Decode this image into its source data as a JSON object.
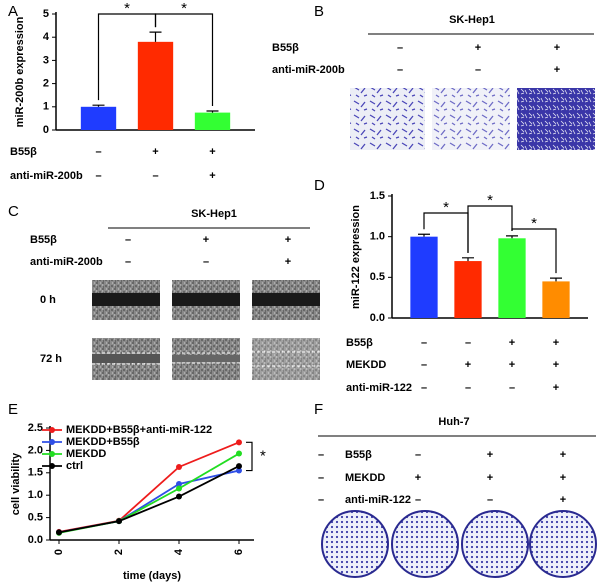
{
  "panel_labels": [
    "A",
    "B",
    "C",
    "D",
    "E",
    "F"
  ],
  "chart_data": [
    {
      "type": "bar",
      "y_label": "miR-200b expression",
      "values": [
        1.0,
        3.8,
        0.75
      ],
      "errors": [
        0.07,
        0.42,
        0.07
      ],
      "colors": [
        "#1f3cff",
        "#ff2a00",
        "#33ff33"
      ],
      "ylim": [
        0,
        5
      ],
      "yticks": [
        0,
        1,
        2,
        3,
        4,
        5
      ],
      "annotations": [
        "*",
        "*"
      ],
      "conditions": [
        {
          "label": "B55β",
          "marks": [
            "–",
            "+",
            "+"
          ]
        },
        {
          "label": "anti-miR-200b",
          "marks": [
            "–",
            "–",
            "+"
          ]
        }
      ]
    },
    {
      "type": "bar",
      "y_label": "miR-122 expression",
      "values": [
        1.0,
        0.7,
        0.98,
        0.45
      ],
      "errors": [
        0.03,
        0.04,
        0.03,
        0.04
      ],
      "colors": [
        "#1f3cff",
        "#ff2a00",
        "#33ff33",
        "#ff8c00"
      ],
      "ylim": [
        0,
        1.5
      ],
      "yticks": [
        {
          "value": 0,
          "label": "0.0"
        },
        {
          "value": 0.5,
          "label": "0.5"
        },
        {
          "value": 1,
          "label": "1.0"
        },
        {
          "value": 1.5,
          "label": "1.5"
        }
      ],
      "annotations": [
        "*",
        "*",
        "*"
      ],
      "conditions": [
        {
          "label": "B55β",
          "marks": [
            "–",
            "–",
            "+",
            "+"
          ]
        },
        {
          "label": "MEKDD",
          "marks": [
            "–",
            "+",
            "+",
            "+"
          ]
        },
        {
          "label": "anti-miR-122",
          "marks": [
            "–",
            "–",
            "–",
            "+"
          ]
        }
      ]
    },
    {
      "type": "line",
      "x_label": "time (days)",
      "y_label": "cell viability",
      "x": [
        0,
        2,
        4,
        6
      ],
      "xlim": [
        -0.3,
        6.5
      ],
      "xticks": [
        0,
        2,
        4,
        6
      ],
      "ylim": [
        0,
        2.5
      ],
      "yticks": [
        {
          "value": 0,
          "label": "0.0"
        },
        {
          "value": 0.5,
          "label": "0.5"
        },
        {
          "value": 1,
          "label": "1.0"
        },
        {
          "value": 1.5,
          "label": "1.5"
        },
        {
          "value": 2,
          "label": "2.0"
        },
        {
          "value": 2.5,
          "label": "2.5"
        }
      ],
      "series": [
        {
          "name": "MEKDD+B55β+anti-miR-122",
          "color": "#ee1c1c",
          "values": [
            0.18,
            0.43,
            1.63,
            2.18
          ]
        },
        {
          "name": "MEKDD+B55β",
          "color": "#2f4fe6",
          "values": [
            0.17,
            0.42,
            1.25,
            1.55
          ]
        },
        {
          "name": "MEKDD",
          "color": "#22dd22",
          "values": [
            0.16,
            0.42,
            1.15,
            1.93
          ]
        },
        {
          "name": "ctrl",
          "color": "#000000",
          "values": [
            0.17,
            0.42,
            0.97,
            1.65
          ]
        }
      ],
      "annotations": [
        "*"
      ]
    }
  ],
  "panel_b": {
    "title": "SK-Hep1",
    "conditions": [
      {
        "label": "B55β",
        "marks": [
          "–",
          "+",
          "+"
        ]
      },
      {
        "label": "anti-miR-200b",
        "marks": [
          "–",
          "–",
          "+"
        ]
      }
    ]
  },
  "panel_c": {
    "title": "SK-Hep1",
    "conditions": [
      {
        "label": "B55β",
        "marks": [
          "–",
          "+",
          "+"
        ]
      },
      {
        "label": "anti-miR-200b",
        "marks": [
          "–",
          "–",
          "+"
        ]
      }
    ],
    "rows": [
      "0 h",
      "72 h"
    ]
  },
  "panel_f": {
    "title": "Huh-7",
    "conditions": [
      {
        "label": "B55β",
        "marks": [
          "–",
          "–",
          "+",
          "+"
        ]
      },
      {
        "label": "MEKDD",
        "marks": [
          "–",
          "+",
          "+",
          "+"
        ]
      },
      {
        "label": "anti-miR-122",
        "marks": [
          "–",
          "–",
          "–",
          "+"
        ]
      }
    ]
  }
}
